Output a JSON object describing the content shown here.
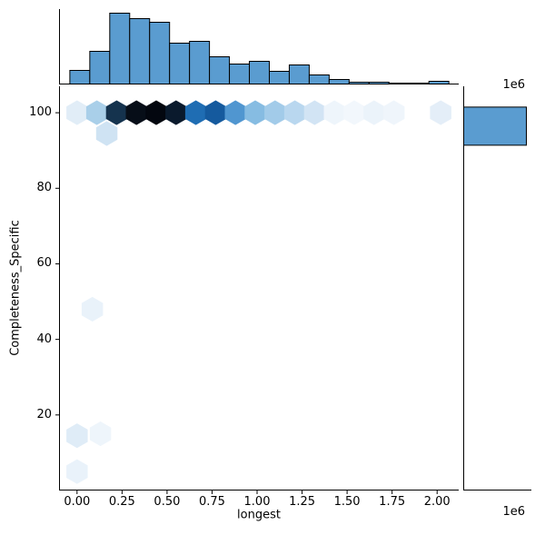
{
  "figure": {
    "background": "#ffffff"
  },
  "axes": {
    "xlabel": "longest",
    "ylabel": "Completeness_Specific",
    "x_offset_text": "1e6",
    "top_offset_text": "1e6"
  },
  "chart_data": {
    "type": "hexbin",
    "title": "",
    "xlabel": "longest",
    "ylabel": "Completeness_Specific",
    "x_unit_note": "x values in units of 1e6",
    "xlim": [
      -0.1,
      2.12
    ],
    "ylim": [
      0,
      107
    ],
    "grid": false,
    "x_ticks": [
      {
        "v": 0.0,
        "label": "0.00"
      },
      {
        "v": 0.25,
        "label": "0.25"
      },
      {
        "v": 0.5,
        "label": "0.50"
      },
      {
        "v": 0.75,
        "label": "0.75"
      },
      {
        "v": 1.0,
        "label": "1.00"
      },
      {
        "v": 1.25,
        "label": "1.25"
      },
      {
        "v": 1.5,
        "label": "1.50"
      },
      {
        "v": 1.75,
        "label": "1.75"
      },
      {
        "v": 2.0,
        "label": "2.00"
      }
    ],
    "y_ticks": [
      {
        "v": 20,
        "label": "20"
      },
      {
        "v": 40,
        "label": "40"
      },
      {
        "v": 60,
        "label": "60"
      },
      {
        "v": 80,
        "label": "80"
      },
      {
        "v": 100,
        "label": "100"
      }
    ],
    "hexes": [
      {
        "x": 0.0,
        "y": 100,
        "c": "#e1edf7"
      },
      {
        "x": 0.11,
        "y": 100,
        "c": "#a9cfe9"
      },
      {
        "x": 0.22,
        "y": 100,
        "c": "#15334e"
      },
      {
        "x": 0.33,
        "y": 100,
        "c": "#070e18"
      },
      {
        "x": 0.44,
        "y": 100,
        "c": "#03070f"
      },
      {
        "x": 0.55,
        "y": 100,
        "c": "#0a1a2d"
      },
      {
        "x": 0.66,
        "y": 100,
        "c": "#1f6db3"
      },
      {
        "x": 0.77,
        "y": 100,
        "c": "#155a9e"
      },
      {
        "x": 0.88,
        "y": 100,
        "c": "#5096d0"
      },
      {
        "x": 0.99,
        "y": 100,
        "c": "#86bce2"
      },
      {
        "x": 1.1,
        "y": 100,
        "c": "#a2cbe9"
      },
      {
        "x": 1.21,
        "y": 100,
        "c": "#b9d7ef"
      },
      {
        "x": 1.32,
        "y": 100,
        "c": "#d2e4f4"
      },
      {
        "x": 1.43,
        "y": 100,
        "c": "#eef5fb"
      },
      {
        "x": 1.54,
        "y": 100,
        "c": "#f2f7fc"
      },
      {
        "x": 1.65,
        "y": 100,
        "c": "#ebf3fa"
      },
      {
        "x": 1.76,
        "y": 100,
        "c": "#eff5fb"
      },
      {
        "x": 2.02,
        "y": 100,
        "c": "#e4eef8"
      },
      {
        "x": 0.165,
        "y": 94.5,
        "c": "#cfe3f3"
      },
      {
        "x": 0.085,
        "y": 48,
        "c": "#e9f2fa"
      },
      {
        "x": 0.0,
        "y": 14.5,
        "c": "#dfecf7"
      },
      {
        "x": 0.13,
        "y": 15,
        "c": "#eef5fb"
      },
      {
        "x": 0.0,
        "y": 5,
        "c": "#e9f2fa"
      }
    ],
    "marginal_top": {
      "type": "histogram",
      "bin_start": -0.04,
      "bin_width": 0.1108,
      "counts": [
        15,
        36,
        78,
        72,
        68,
        45,
        47,
        30,
        22,
        25,
        14,
        21,
        10,
        5,
        2,
        2,
        1,
        1,
        3
      ]
    },
    "marginal_right": {
      "type": "histogram",
      "bars": [
        {
          "y0": 91.4,
          "y1": 101.5,
          "frac": 0.96
        }
      ]
    },
    "colors": {
      "hist_fill": "#5a9cd0",
      "hist_edge": "#000000",
      "hex_colormap": "white-to-dark-blue"
    }
  }
}
